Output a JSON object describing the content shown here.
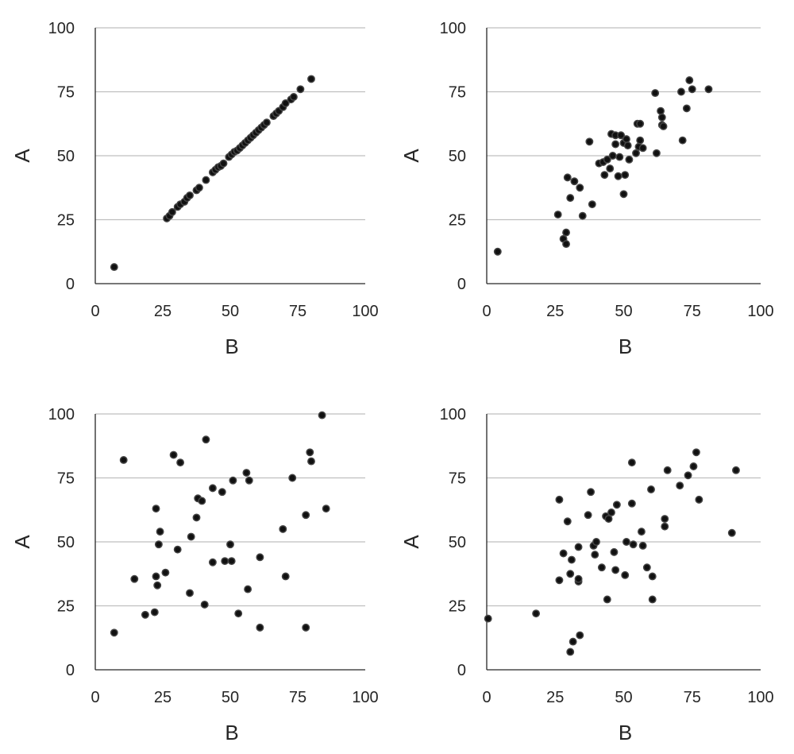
{
  "chart_data": [
    {
      "type": "scatter",
      "xlabel": "B",
      "ylabel": "A",
      "xlim": [
        0,
        100
      ],
      "ylim": [
        0,
        100
      ],
      "xticks": [
        "0",
        "25",
        "50",
        "75",
        "100"
      ],
      "yticks": [
        "0",
        "25",
        "50",
        "75",
        "100"
      ],
      "grid": "horizontal",
      "points": [
        [
          7,
          6.5
        ],
        [
          26.5,
          25.5
        ],
        [
          27.5,
          26.5
        ],
        [
          28.5,
          28
        ],
        [
          30.5,
          30
        ],
        [
          31.5,
          31
        ],
        [
          33,
          32
        ],
        [
          34,
          33.5
        ],
        [
          35,
          34.5
        ],
        [
          37.5,
          36.5
        ],
        [
          38.5,
          37.5
        ],
        [
          41,
          40.5
        ],
        [
          43.5,
          43.5
        ],
        [
          44.5,
          44.5
        ],
        [
          45.5,
          45.5
        ],
        [
          46.5,
          46
        ],
        [
          47.5,
          47
        ],
        [
          49.5,
          49.5
        ],
        [
          50.5,
          50.5
        ],
        [
          51.5,
          51.5
        ],
        [
          52.5,
          52
        ],
        [
          53.5,
          53
        ],
        [
          54.5,
          54
        ],
        [
          55.5,
          55
        ],
        [
          56.5,
          56
        ],
        [
          57.5,
          57
        ],
        [
          58.5,
          58
        ],
        [
          59.5,
          59
        ],
        [
          60.5,
          60
        ],
        [
          61.5,
          61
        ],
        [
          62.5,
          62
        ],
        [
          63.5,
          63
        ],
        [
          66,
          65.5
        ],
        [
          67,
          66.5
        ],
        [
          68,
          67.5
        ],
        [
          69.5,
          69
        ],
        [
          70.5,
          70.5
        ],
        [
          72.5,
          72
        ],
        [
          73.5,
          73
        ],
        [
          76,
          76
        ],
        [
          80,
          80
        ]
      ]
    },
    {
      "type": "scatter",
      "xlabel": "B",
      "ylabel": "A",
      "xlim": [
        0,
        100
      ],
      "ylim": [
        0,
        100
      ],
      "xticks": [
        "0",
        "25",
        "50",
        "75",
        "100"
      ],
      "yticks": [
        "0",
        "25",
        "50",
        "75",
        "100"
      ],
      "grid": "horizontal",
      "points": [
        [
          4,
          12.5
        ],
        [
          26,
          27
        ],
        [
          28,
          17.5
        ],
        [
          29,
          20
        ],
        [
          29,
          15.5
        ],
        [
          29.5,
          41.5
        ],
        [
          30.5,
          33.5
        ],
        [
          32,
          40
        ],
        [
          34,
          37.5
        ],
        [
          35,
          26.5
        ],
        [
          37.5,
          55.5
        ],
        [
          38.5,
          31
        ],
        [
          41,
          47
        ],
        [
          42.5,
          47.5
        ],
        [
          43,
          42.5
        ],
        [
          44,
          48.5
        ],
        [
          45,
          45
        ],
        [
          45.5,
          58.5
        ],
        [
          46,
          50
        ],
        [
          47,
          58
        ],
        [
          47,
          54.5
        ],
        [
          48,
          42
        ],
        [
          48.5,
          49.5
        ],
        [
          49,
          58
        ],
        [
          50,
          55
        ],
        [
          50,
          35
        ],
        [
          50.5,
          42.5
        ],
        [
          51,
          56.5
        ],
        [
          51.5,
          54
        ],
        [
          52,
          48.5
        ],
        [
          54.5,
          51
        ],
        [
          55,
          62.5
        ],
        [
          55.5,
          53.5
        ],
        [
          56,
          56
        ],
        [
          56,
          62.5
        ],
        [
          57,
          53
        ],
        [
          61.5,
          74.5
        ],
        [
          62,
          51
        ],
        [
          63.5,
          67.5
        ],
        [
          64,
          65
        ],
        [
          64,
          62
        ],
        [
          64.5,
          61.5
        ],
        [
          71,
          75
        ],
        [
          71.5,
          56
        ],
        [
          73,
          68.5
        ],
        [
          74,
          79.5
        ],
        [
          75,
          76
        ],
        [
          81,
          76
        ]
      ]
    },
    {
      "type": "scatter",
      "xlabel": "B",
      "ylabel": "A",
      "xlim": [
        0,
        100
      ],
      "ylim": [
        0,
        100
      ],
      "xticks": [
        "0",
        "25",
        "50",
        "75",
        "100"
      ],
      "yticks": [
        "0",
        "25",
        "50",
        "75",
        "100"
      ],
      "grid": "horizontal",
      "points": [
        [
          7,
          14.5
        ],
        [
          10.5,
          82
        ],
        [
          14.5,
          35.5
        ],
        [
          18.5,
          21.5
        ],
        [
          22,
          22.5
        ],
        [
          22.5,
          63
        ],
        [
          22.5,
          36.5
        ],
        [
          23,
          33
        ],
        [
          23.5,
          49
        ],
        [
          24,
          54
        ],
        [
          26,
          38
        ],
        [
          29,
          84
        ],
        [
          30.5,
          47
        ],
        [
          31.5,
          81
        ],
        [
          35,
          30
        ],
        [
          35.5,
          52
        ],
        [
          37.5,
          59.5
        ],
        [
          38,
          67
        ],
        [
          39.5,
          66
        ],
        [
          40.5,
          25.5
        ],
        [
          41,
          90
        ],
        [
          43.5,
          71
        ],
        [
          43.5,
          42
        ],
        [
          47,
          69.5
        ],
        [
          48,
          42.5
        ],
        [
          50,
          49
        ],
        [
          50.5,
          42.5
        ],
        [
          51,
          74
        ],
        [
          53,
          22
        ],
        [
          56,
          77
        ],
        [
          56.5,
          31.5
        ],
        [
          57,
          74
        ],
        [
          61,
          44
        ],
        [
          61,
          16.5
        ],
        [
          69.5,
          55
        ],
        [
          70.5,
          36.5
        ],
        [
          73,
          75
        ],
        [
          78,
          60.5
        ],
        [
          78,
          16.5
        ],
        [
          79.5,
          85
        ],
        [
          80,
          81.5
        ],
        [
          84,
          99.5
        ],
        [
          85.5,
          63
        ]
      ]
    },
    {
      "type": "scatter",
      "xlabel": "B",
      "ylabel": "A",
      "xlim": [
        0,
        100
      ],
      "ylim": [
        0,
        100
      ],
      "xticks": [
        "0",
        "25",
        "50",
        "75",
        "100"
      ],
      "yticks": [
        "0",
        "25",
        "50",
        "75",
        "100"
      ],
      "grid": "horizontal",
      "points": [
        [
          0.5,
          20
        ],
        [
          18,
          22
        ],
        [
          26.5,
          35
        ],
        [
          26.5,
          66.5
        ],
        [
          28,
          45.5
        ],
        [
          29.5,
          58
        ],
        [
          30.5,
          7
        ],
        [
          30.5,
          37.5
        ],
        [
          31,
          43
        ],
        [
          31.5,
          11
        ],
        [
          33.5,
          48
        ],
        [
          33.5,
          34.5
        ],
        [
          33.5,
          35.5
        ],
        [
          34,
          13.5
        ],
        [
          37,
          60.5
        ],
        [
          38,
          69.5
        ],
        [
          39,
          48.5
        ],
        [
          39.5,
          45
        ],
        [
          40,
          50
        ],
        [
          42,
          40
        ],
        [
          43.5,
          60
        ],
        [
          44,
          27.5
        ],
        [
          44.5,
          59
        ],
        [
          45.5,
          61.5
        ],
        [
          46.5,
          46
        ],
        [
          47,
          39
        ],
        [
          47.5,
          64.5
        ],
        [
          50.5,
          37
        ],
        [
          51,
          50
        ],
        [
          53,
          81
        ],
        [
          53,
          65
        ],
        [
          53.5,
          49
        ],
        [
          56.5,
          54
        ],
        [
          57,
          48.5
        ],
        [
          58.5,
          40
        ],
        [
          60,
          70.5
        ],
        [
          60.5,
          36.5
        ],
        [
          60.5,
          27.5
        ],
        [
          65,
          56
        ],
        [
          65,
          59
        ],
        [
          66,
          78
        ],
        [
          70.5,
          72
        ],
        [
          73.5,
          76
        ],
        [
          75.5,
          79.5
        ],
        [
          76.5,
          85
        ],
        [
          77.5,
          66.5
        ],
        [
          89.5,
          53.5
        ],
        [
          91,
          78
        ]
      ]
    }
  ]
}
